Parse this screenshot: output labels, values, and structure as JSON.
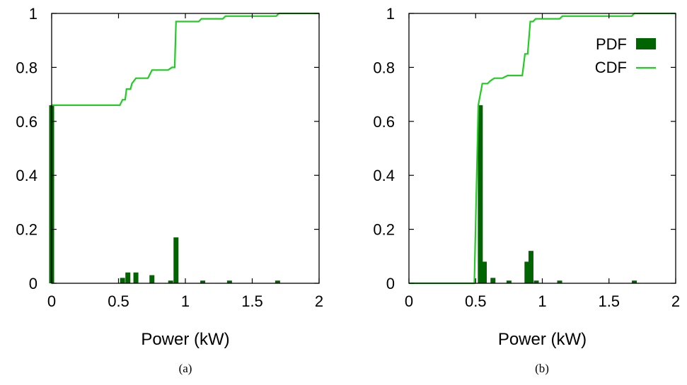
{
  "colors": {
    "pdf": "#006400",
    "cdf": "#22cc22",
    "axis": "#000000"
  },
  "legend": {
    "pdf_label": "PDF",
    "cdf_label": "CDF",
    "placement": "top-right",
    "panel": 1
  },
  "chart_data": [
    {
      "type": "bar",
      "caption": "(a)",
      "xlabel": "Power (kW)",
      "ylabel": "",
      "xlim": [
        0,
        2
      ],
      "ylim": [
        0,
        1
      ],
      "xticks": [
        "0",
        "0.5",
        "1",
        "1.5",
        "2"
      ],
      "xtick_values": [
        0,
        0.5,
        1,
        1.5,
        2
      ],
      "yticks": [
        "0",
        "0.2",
        "0.4",
        "0.6",
        "0.8",
        "1"
      ],
      "ytick_values": [
        0,
        0.2,
        0.4,
        0.6,
        0.8,
        1
      ],
      "grid": false,
      "series": [
        {
          "name": "PDF",
          "kind": "bar",
          "x": [
            0.0,
            0.53,
            0.57,
            0.63,
            0.75,
            0.89,
            0.93,
            1.13,
            1.33,
            1.69
          ],
          "values": [
            0.66,
            0.02,
            0.04,
            0.04,
            0.03,
            0.01,
            0.17,
            0.01,
            0.01,
            0.01
          ]
        },
        {
          "name": "CDF",
          "kind": "line",
          "x": [
            0,
            0.01,
            0.51,
            0.53,
            0.55,
            0.56,
            0.59,
            0.6,
            0.63,
            0.65,
            0.72,
            0.75,
            0.87,
            0.9,
            0.92,
            0.93,
            1.1,
            1.12,
            1.28,
            1.3,
            1.68,
            1.7,
            2.0
          ],
          "values": [
            0.66,
            0.66,
            0.66,
            0.68,
            0.68,
            0.72,
            0.72,
            0.74,
            0.76,
            0.76,
            0.76,
            0.79,
            0.79,
            0.8,
            0.8,
            0.97,
            0.97,
            0.98,
            0.98,
            0.99,
            0.99,
            1.0,
            1.0
          ]
        }
      ]
    },
    {
      "type": "bar",
      "caption": "(b)",
      "xlabel": "Power (kW)",
      "ylabel": "",
      "xlim": [
        0,
        2
      ],
      "ylim": [
        0,
        1
      ],
      "xticks": [
        "0",
        "0.5",
        "1",
        "1.5",
        "2"
      ],
      "xtick_values": [
        0,
        0.5,
        1,
        1.5,
        2
      ],
      "yticks": [
        "0",
        "0.2",
        "0.4",
        "0.6",
        "0.8",
        "1"
      ],
      "ytick_values": [
        0,
        0.2,
        0.4,
        0.6,
        0.8,
        1
      ],
      "grid": false,
      "series": [
        {
          "name": "PDF",
          "kind": "bar",
          "x": [
            0.535,
            0.565,
            0.63,
            0.75,
            0.885,
            0.915,
            0.955,
            1.13,
            1.69
          ],
          "values": [
            0.66,
            0.08,
            0.02,
            0.01,
            0.08,
            0.12,
            0.01,
            0.01,
            0.01
          ]
        },
        {
          "name": "CDF",
          "kind": "line",
          "x": [
            0,
            0.49,
            0.52,
            0.55,
            0.59,
            0.61,
            0.64,
            0.7,
            0.74,
            0.85,
            0.87,
            0.89,
            0.91,
            0.93,
            0.95,
            1.13,
            1.15,
            1.67,
            1.69,
            2.0
          ],
          "values": [
            0,
            0,
            0.66,
            0.74,
            0.74,
            0.75,
            0.76,
            0.76,
            0.77,
            0.77,
            0.85,
            0.85,
            0.97,
            0.97,
            0.98,
            0.98,
            0.99,
            0.99,
            1.0,
            1.0
          ]
        }
      ]
    }
  ]
}
